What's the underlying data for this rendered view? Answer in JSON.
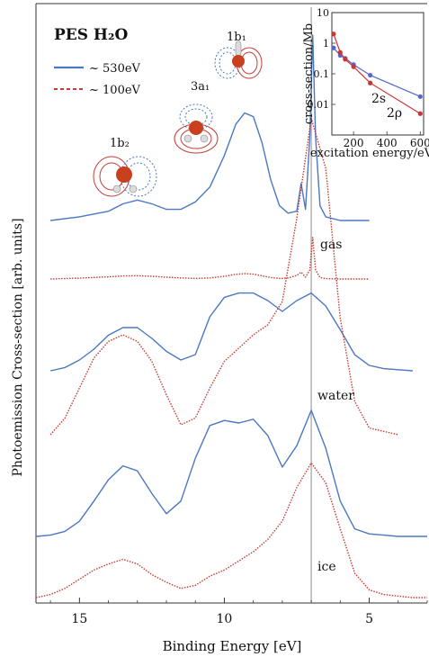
{
  "chart_data": [
    {
      "type": "line",
      "title": "PES H₂O",
      "xlabel": "Binding Energy [eV]",
      "ylabel": "Photoemission Cross-section  [arb. units]",
      "xlim": [
        16.5,
        3.0
      ],
      "x_ticks": [
        15,
        10,
        5
      ],
      "x_tick_labels": [
        "15",
        "10",
        "5"
      ],
      "legend": [
        {
          "label": "~ 530eV",
          "color": "#4a78c2",
          "style": "solid"
        },
        {
          "label": "~ 100eV",
          "color": "#c83a33",
          "style": "dashed"
        }
      ],
      "orbital_labels": [
        "1b₁",
        "3a₁",
        "1b₂"
      ],
      "panel_labels": [
        "gas",
        "water",
        "ice"
      ],
      "reference_line_x": 7.0,
      "series": [
        {
          "name": "gas ~530eV",
          "color": "#4a78c2",
          "style": "solid",
          "offset": 0,
          "scale": 1.0,
          "x": [
            16,
            15,
            14,
            13.5,
            13,
            12.5,
            12,
            11.5,
            11,
            10.5,
            10,
            9.6,
            9.3,
            9.0,
            8.7,
            8.4,
            8.1,
            7.8,
            7.5,
            7.35,
            7.2,
            7.05,
            6.95,
            6.85,
            6.7,
            6.5,
            6,
            5
          ],
          "y": [
            0.0,
            0.02,
            0.05,
            0.09,
            0.11,
            0.09,
            0.06,
            0.06,
            0.1,
            0.18,
            0.35,
            0.52,
            0.58,
            0.56,
            0.42,
            0.22,
            0.08,
            0.04,
            0.05,
            0.2,
            0.06,
            0.45,
            1.0,
            0.45,
            0.08,
            0.02,
            0.0,
            0.0
          ]
        },
        {
          "name": "gas ~100eV",
          "color": "#c83a33",
          "style": "dashed",
          "offset": 0,
          "scale": 1.0,
          "x": [
            16,
            15,
            14,
            13.5,
            13,
            12.5,
            12,
            11.5,
            11,
            10.5,
            10,
            9.6,
            9.3,
            9.0,
            8.7,
            8.4,
            8.1,
            7.8,
            7.5,
            7.35,
            7.2,
            7.05,
            6.95,
            6.85,
            6.7,
            6.5,
            6,
            5
          ],
          "y": [
            0.0,
            0.05,
            0.12,
            0.17,
            0.18,
            0.15,
            0.1,
            0.06,
            0.03,
            0.06,
            0.15,
            0.26,
            0.3,
            0.27,
            0.18,
            0.08,
            0.03,
            0.06,
            0.2,
            0.38,
            0.1,
            0.5,
            2.3,
            0.5,
            0.08,
            0.02,
            0.0,
            0.0
          ]
        },
        {
          "name": "water ~530eV",
          "color": "#4a78c2",
          "style": "solid",
          "offset": 0,
          "scale": 1.0,
          "x": [
            16,
            15.5,
            15,
            14.5,
            14,
            13.5,
            13,
            12.5,
            12,
            11.5,
            11,
            10.5,
            10,
            9.5,
            9.0,
            8.5,
            8.0,
            7.5,
            7.0,
            6.5,
            6.0,
            5.5,
            5.0,
            4.5,
            4.0,
            3.5
          ],
          "y": [
            0.0,
            0.03,
            0.1,
            0.2,
            0.33,
            0.4,
            0.4,
            0.3,
            0.18,
            0.1,
            0.15,
            0.5,
            0.68,
            0.72,
            0.72,
            0.65,
            0.55,
            0.65,
            0.72,
            0.6,
            0.38,
            0.15,
            0.05,
            0.02,
            0.01,
            0.0
          ]
        },
        {
          "name": "water ~100eV",
          "color": "#c83a33",
          "style": "dashed",
          "offset": 0,
          "scale": 1.0,
          "x": [
            16,
            15.5,
            15,
            14.5,
            14,
            13.5,
            13,
            12.5,
            12,
            11.5,
            11,
            10.5,
            10,
            9.5,
            9.0,
            8.5,
            8.0,
            7.5,
            7.0,
            6.5,
            6.0,
            5.5,
            5.0,
            4.5,
            4.0
          ],
          "y": [
            0.0,
            0.05,
            0.14,
            0.23,
            0.28,
            0.3,
            0.28,
            0.22,
            0.12,
            0.03,
            0.05,
            0.14,
            0.22,
            0.26,
            0.3,
            0.33,
            0.4,
            0.65,
            0.95,
            0.8,
            0.35,
            0.1,
            0.02,
            0.01,
            0.0
          ]
        },
        {
          "name": "ice ~530eV",
          "color": "#4a78c2",
          "style": "solid",
          "offset": 0,
          "scale": 1.0,
          "x": [
            16.5,
            16,
            15.5,
            15,
            14.5,
            14,
            13.5,
            13,
            12.5,
            12,
            11.5,
            11,
            10.5,
            10,
            9.5,
            9.0,
            8.5,
            8.0,
            7.5,
            7.0,
            6.5,
            6.0,
            5.5,
            5.0,
            4.5,
            4.0,
            3.5,
            3.0
          ],
          "y": [
            0.0,
            0.01,
            0.04,
            0.12,
            0.28,
            0.45,
            0.56,
            0.52,
            0.34,
            0.18,
            0.28,
            0.62,
            0.88,
            0.92,
            0.9,
            0.93,
            0.8,
            0.55,
            0.72,
            1.0,
            0.7,
            0.28,
            0.06,
            0.02,
            0.01,
            0.0,
            0.0,
            0.0
          ]
        },
        {
          "name": "ice ~100eV",
          "color": "#c83a33",
          "style": "dashed",
          "offset": 0,
          "scale": 1.0,
          "x": [
            16.5,
            16,
            15.5,
            15,
            14.5,
            14,
            13.5,
            13,
            12.5,
            12,
            11.5,
            11,
            10.5,
            10,
            9.5,
            9.0,
            8.5,
            8.0,
            7.5,
            7.0,
            6.5,
            6.0,
            5.5,
            5.0,
            4.5,
            4.0,
            3.5,
            3.0
          ],
          "y": [
            0.0,
            0.02,
            0.06,
            0.12,
            0.18,
            0.22,
            0.25,
            0.22,
            0.15,
            0.1,
            0.06,
            0.08,
            0.14,
            0.18,
            0.24,
            0.3,
            0.38,
            0.5,
            0.72,
            0.88,
            0.75,
            0.45,
            0.16,
            0.05,
            0.02,
            0.01,
            0.0,
            0.0
          ]
        }
      ]
    },
    {
      "type": "line",
      "title": "",
      "xlabel": "excitation energy/eV",
      "ylabel": "cross-section/Mb",
      "xlim": [
        70,
        620
      ],
      "ylim": [
        0.001,
        10
      ],
      "y_scale": "log",
      "x_ticks": [
        200,
        400,
        600
      ],
      "x_tick_labels": [
        "200",
        "400",
        "600"
      ],
      "y_ticks": [
        0.01,
        0.1,
        1,
        10
      ],
      "y_tick_labels": [
        "0.01",
        "0.1",
        "1",
        "10"
      ],
      "grid": false,
      "series": [
        {
          "name": "2s",
          "color": "#5566cc",
          "x": [
            80,
            120,
            150,
            200,
            300,
            600
          ],
          "y": [
            0.7,
            0.4,
            0.32,
            0.2,
            0.09,
            0.018
          ]
        },
        {
          "name": "2ρ",
          "color": "#cc3333",
          "x": [
            80,
            120,
            150,
            200,
            300,
            600
          ],
          "y": [
            2.0,
            0.5,
            0.3,
            0.17,
            0.05,
            0.005
          ]
        }
      ]
    }
  ]
}
